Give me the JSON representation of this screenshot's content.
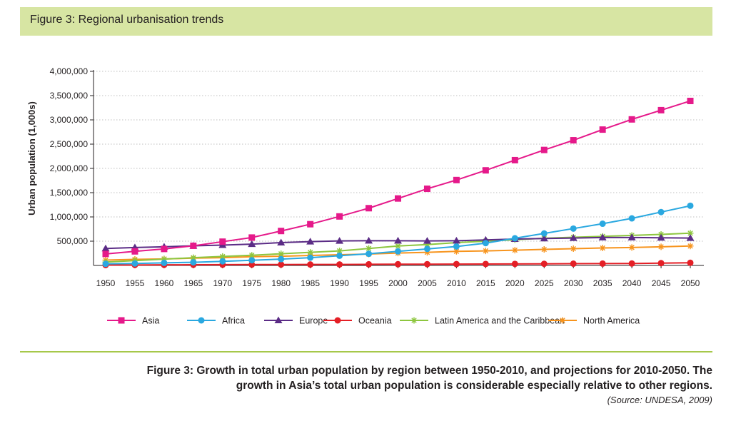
{
  "header": {
    "title": "Figure 3: Regional urbanisation trends"
  },
  "caption": {
    "line1": "Figure 3: Growth in total urban population by region between 1950-2010, and projections for 2010-2050. The",
    "line2": "growth in Asia’s total urban population is considerable especially relative to other regions.",
    "source": "(Source: UNDESA, 2009)"
  },
  "chart_data": {
    "type": "line",
    "title": "",
    "xlabel": "",
    "ylabel": "Urban population (1,000s)",
    "ylim": [
      0,
      4000000
    ],
    "yticks": [
      500000,
      1000000,
      1500000,
      2000000,
      2500000,
      3000000,
      3500000,
      4000000
    ],
    "ytick_labels": [
      "500,000",
      "1,000,000",
      "1,500,000",
      "2,000,000",
      "2,500,000",
      "3,000,000",
      "3,500,000",
      "4,000,000"
    ],
    "grid": "horizontal dotted",
    "legend_position": "bottom",
    "x": [
      1950,
      1955,
      1960,
      1965,
      1970,
      1975,
      1980,
      1985,
      1990,
      1995,
      2000,
      2005,
      2010,
      2015,
      2020,
      2025,
      2030,
      2035,
      2040,
      2045,
      2050
    ],
    "series": [
      {
        "name": "Asia",
        "color": "#e5198a",
        "marker": "square",
        "values": [
          237000,
          290000,
          340000,
          405000,
          490000,
          575000,
          710000,
          850000,
          1010000,
          1180000,
          1380000,
          1580000,
          1760000,
          1960000,
          2170000,
          2380000,
          2580000,
          2800000,
          3010000,
          3200000,
          3390000
        ]
      },
      {
        "name": "Africa",
        "color": "#2aa8e0",
        "marker": "circle",
        "values": [
          33000,
          40000,
          53000,
          65000,
          85000,
          107000,
          130000,
          160000,
          200000,
          240000,
          290000,
          340000,
          390000,
          460000,
          560000,
          660000,
          760000,
          860000,
          970000,
          1100000,
          1230000
        ]
      },
      {
        "name": "Europe",
        "color": "#5b2c86",
        "marker": "triangle",
        "values": [
          350000,
          370000,
          385000,
          405000,
          420000,
          440000,
          470000,
          490000,
          505000,
          510000,
          510000,
          505000,
          510000,
          525000,
          545000,
          555000,
          565000,
          575000,
          575000,
          570000,
          565000
        ]
      },
      {
        "name": "Oceania",
        "color": "#e41f26",
        "marker": "circle",
        "values": [
          8000,
          10000,
          12000,
          14000,
          16000,
          18000,
          19000,
          20000,
          21000,
          23000,
          25000,
          26000,
          28000,
          30000,
          32000,
          34000,
          36000,
          38000,
          40000,
          47000,
          55000
        ]
      },
      {
        "name": "Latin America and the Caribbean",
        "color": "#8dc63f",
        "marker": "asterisk",
        "values": [
          70000,
          100000,
          130000,
          160000,
          185000,
          210000,
          240000,
          270000,
          300000,
          350000,
          400000,
          430000,
          470000,
          500000,
          530000,
          560000,
          580000,
          600000,
          620000,
          640000,
          665000
        ]
      },
      {
        "name": "North America",
        "color": "#f7941d",
        "marker": "asterisk",
        "values": [
          110000,
          125000,
          135000,
          150000,
          160000,
          180000,
          190000,
          205000,
          220000,
          235000,
          255000,
          270000,
          290000,
          300000,
          315000,
          330000,
          345000,
          360000,
          370000,
          385000,
          400000
        ]
      }
    ]
  }
}
